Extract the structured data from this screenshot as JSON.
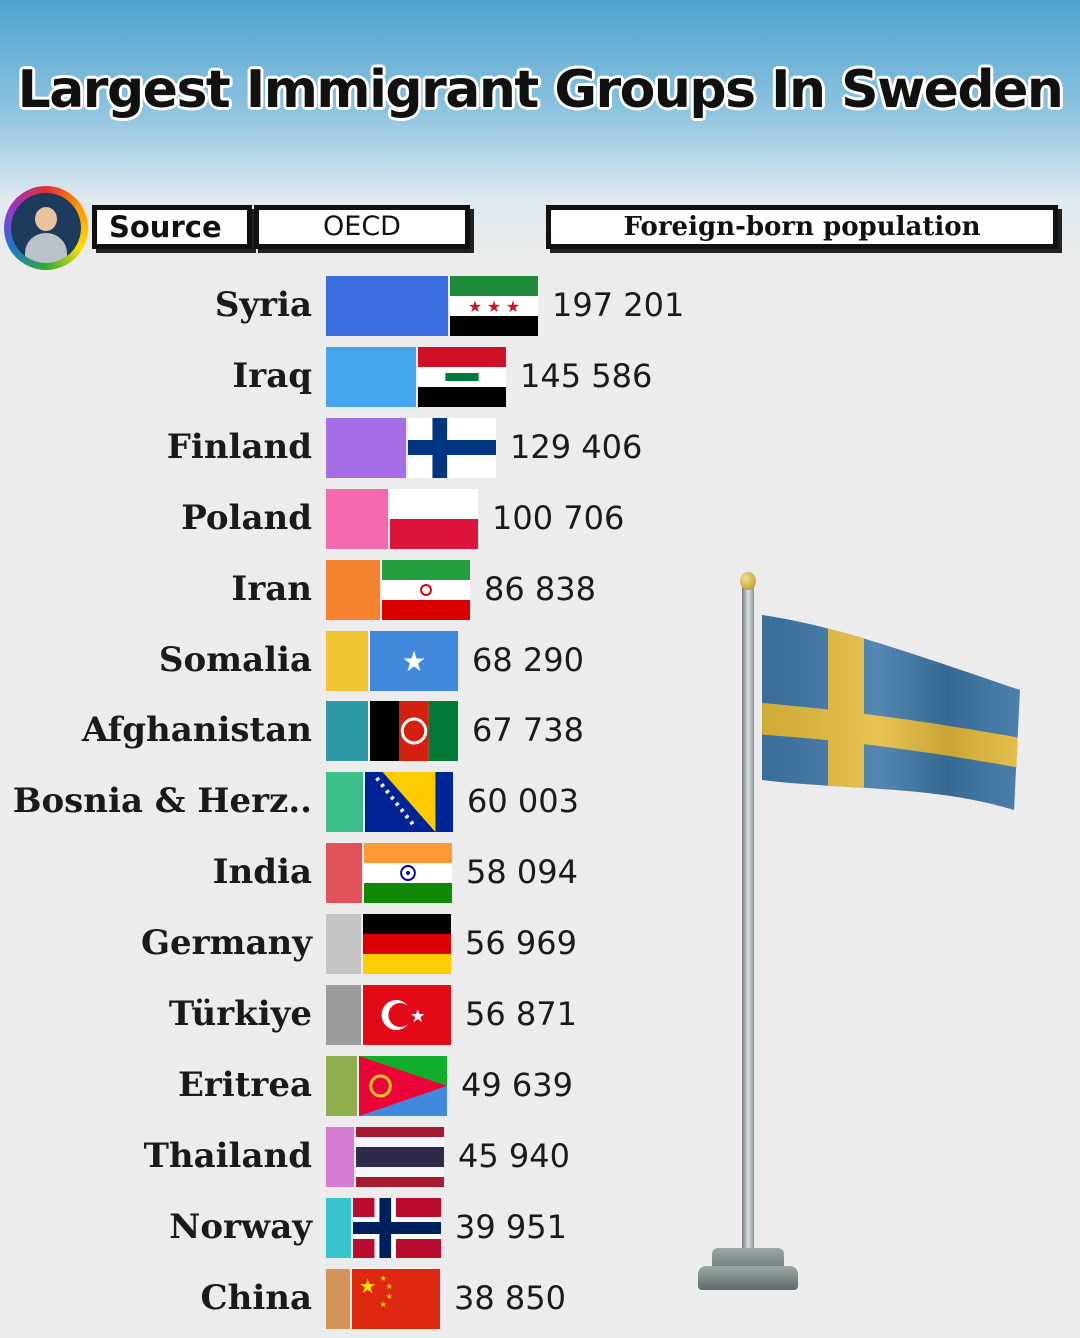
{
  "title": "Largest Immigrant Groups In Sweden",
  "header": {
    "source_label": "Source",
    "source_value": "OECD",
    "metric_label": "Foreign-born population"
  },
  "chart_data": {
    "type": "bar",
    "title": "Largest Immigrant Groups In Sweden",
    "metric": "Foreign-born population",
    "source": "OECD",
    "orientation": "horizontal",
    "categories": [
      "Syria",
      "Iraq",
      "Finland",
      "Poland",
      "Iran",
      "Somalia",
      "Afghanistan",
      "Bosnia & Herz..",
      "India",
      "Germany",
      "Türkiye",
      "Eritrea",
      "Thailand",
      "Norway",
      "China"
    ],
    "values": [
      197201,
      145586,
      129406,
      100706,
      86838,
      68290,
      67738,
      60003,
      58094,
      56969,
      56871,
      49639,
      45940,
      39951,
      38850
    ],
    "value_labels": [
      "197 201",
      "145 586",
      "129 406",
      "100 706",
      "86 838",
      "68 290",
      "67 738",
      "60 003",
      "58 094",
      "56 969",
      "56 871",
      "49 639",
      "45 940",
      "39 951",
      "38 850"
    ],
    "flags": [
      "syria",
      "iraq",
      "finland",
      "poland",
      "iran",
      "somalia",
      "afghanistan",
      "bosnia",
      "india",
      "germany",
      "turkiye",
      "eritrea",
      "thailand",
      "norway",
      "china"
    ],
    "colors": [
      "#3b6fe0",
      "#45a6f0",
      "#a56ee6",
      "#f36aae",
      "#f5822f",
      "#f2c535",
      "#2e9aa6",
      "#3dbf8c",
      "#e2535a",
      "#c4c4c4",
      "#9c9c9c",
      "#8fae4e",
      "#d57bd0",
      "#36c3c9",
      "#d4935a"
    ],
    "grid": false,
    "legend": "none"
  }
}
